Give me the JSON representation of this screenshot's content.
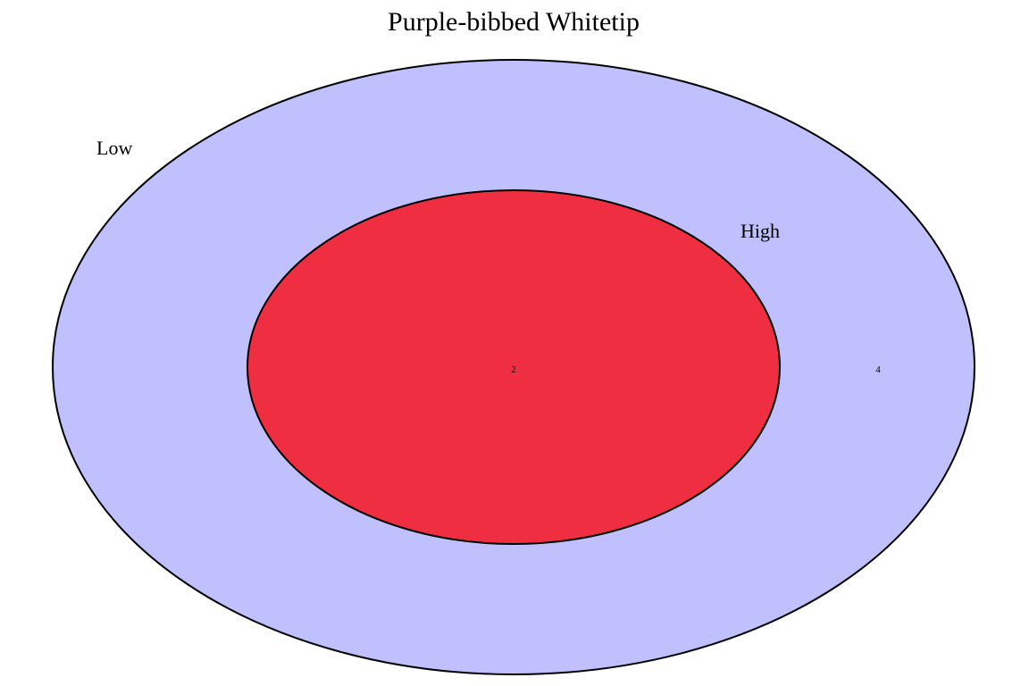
{
  "diagram": {
    "title": "Purple-bibbed Whitetip",
    "sets": [
      {
        "name": "Low",
        "fill": "#c0c0ff",
        "stroke": "#000000"
      },
      {
        "name": "High",
        "fill": "#ef2f41",
        "stroke": "#000000"
      }
    ],
    "regions": [
      {
        "sets": [
          "Low",
          "High"
        ],
        "count": "2"
      },
      {
        "sets": [
          "Low"
        ],
        "count": "4"
      }
    ]
  }
}
